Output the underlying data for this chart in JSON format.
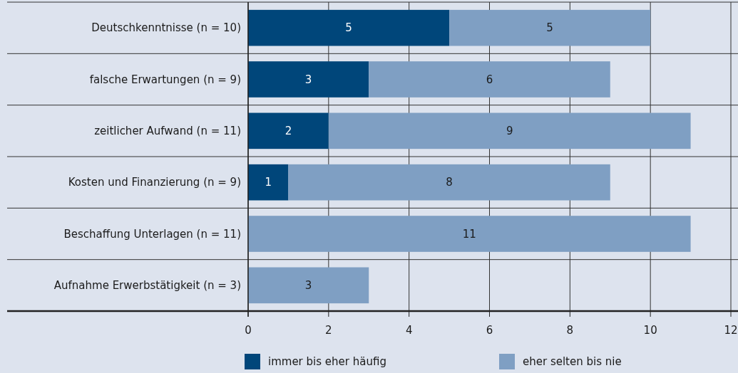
{
  "chart_data": {
    "type": "bar",
    "orientation": "horizontal",
    "stacked": true,
    "categories": [
      "Deutschkenntnisse (n = 10)",
      "falsche Erwartungen (n = 9)",
      "zeitlicher Aufwand (n = 11)",
      "Kosten und Finanzierung (n = 9)",
      "Beschaffung Unterlagen (n = 11)",
      "Aufnahme Erwerbstätigkeit (n = 3)"
    ],
    "series": [
      {
        "name": "immer bis eher häufig",
        "color": "#00467a",
        "values": [
          5,
          3,
          2,
          1,
          null,
          null
        ]
      },
      {
        "name": "eher selten bis nie",
        "color": "#7f9fc3",
        "values": [
          5,
          6,
          9,
          8,
          11,
          3
        ]
      }
    ],
    "xlim": [
      0,
      12
    ],
    "xticks": [
      0,
      2,
      4,
      6,
      8,
      10,
      12
    ],
    "grid": true,
    "data_labels": true,
    "legend": "bottom"
  }
}
